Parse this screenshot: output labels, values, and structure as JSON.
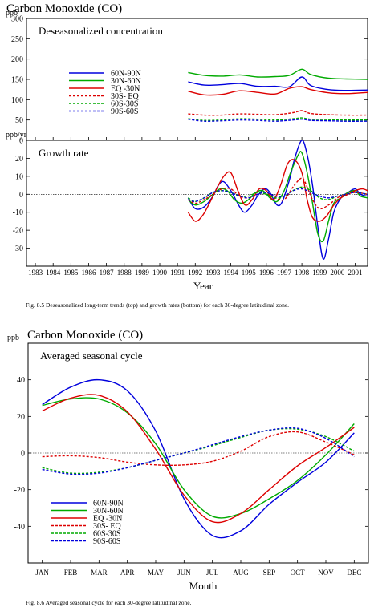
{
  "figure1": {
    "title": "Carbon Monoxide (CO)",
    "caption": "Fig. 8.5  Deseasonalized long-term trends (top) and growth rates (bottom) for each 30-degree latitudinal zone.",
    "xlabel": "Year",
    "xticks": [
      "1983",
      "1984",
      "1985",
      "1986",
      "1987",
      "1988",
      "1989",
      "1990",
      "1991",
      "1992",
      "1993",
      "1994",
      "1995",
      "1996",
      "1997",
      "1998",
      "1999",
      "2000",
      "2001"
    ]
  },
  "figure2": {
    "title": "Carbon Monoxide (CO)",
    "caption": "Fig. 8.6  Averaged seasonal cycle for each 30-degree latitudinal zone."
  },
  "colors": {
    "blue": "#0000dd",
    "green": "#00aa00",
    "red": "#dd0000"
  },
  "chart_data": [
    {
      "type": "line",
      "title": "Deseasonalized concentration",
      "ylabel": "ppb",
      "xlim": [
        1982.5,
        2001.7
      ],
      "ylim": [
        0,
        300
      ],
      "yticks": [
        0,
        50,
        100,
        150,
        200,
        250,
        300
      ],
      "legend": "top-left",
      "series": [
        {
          "name": "60N-90N",
          "color": "#0000dd",
          "dash": false,
          "x": [
            1991.6,
            1992.5,
            1993.5,
            1994.5,
            1995.5,
            1996.5,
            1997.3,
            1998.0,
            1998.5,
            1999.5,
            2000.5,
            2001.7
          ],
          "y": [
            144,
            136,
            137,
            140,
            133,
            133,
            132,
            156,
            135,
            125,
            123,
            124
          ]
        },
        {
          "name": "30N-60N",
          "color": "#00aa00",
          "dash": false,
          "x": [
            1991.6,
            1992.5,
            1993.5,
            1994.5,
            1995.5,
            1996.5,
            1997.3,
            1998.0,
            1998.5,
            1999.5,
            2000.5,
            2001.7
          ],
          "y": [
            167,
            160,
            158,
            161,
            156,
            157,
            160,
            175,
            162,
            153,
            151,
            150
          ]
        },
        {
          "name": "EQ -30N",
          "color": "#dd0000",
          "dash": false,
          "x": [
            1991.6,
            1992.5,
            1993.5,
            1994.5,
            1995.5,
            1996.5,
            1997.3,
            1998.0,
            1998.5,
            1999.5,
            2000.5,
            2001.7
          ],
          "y": [
            121,
            112,
            113,
            122,
            118,
            114,
            128,
            132,
            125,
            117,
            115,
            118
          ]
        },
        {
          "name": "30S- EQ",
          "color": "#dd0000",
          "dash": true,
          "x": [
            1991.6,
            1992.5,
            1993.5,
            1994.5,
            1995.5,
            1996.5,
            1997.5,
            1998.0,
            1998.5,
            1999.5,
            2000.5,
            2001.7
          ],
          "y": [
            65,
            62,
            62,
            65,
            64,
            63,
            68,
            73,
            66,
            63,
            62,
            62
          ]
        },
        {
          "name": "60S-30S",
          "color": "#00aa00",
          "dash": true,
          "x": [
            1991.6,
            1992.5,
            1993.5,
            1994.5,
            1995.5,
            1996.5,
            1997.5,
            1998.0,
            1998.5,
            1999.5,
            2000.5,
            2001.7
          ],
          "y": [
            53,
            49,
            50,
            53,
            52,
            50,
            53,
            55,
            52,
            51,
            50,
            50
          ]
        },
        {
          "name": "90S-60S",
          "color": "#0000dd",
          "dash": true,
          "x": [
            1991.6,
            1992.5,
            1993.5,
            1994.5,
            1995.5,
            1996.5,
            1997.5,
            1998.0,
            1998.5,
            1999.5,
            2000.5,
            2001.7
          ],
          "y": [
            52,
            47,
            48,
            50,
            49,
            47,
            50,
            52,
            49,
            48,
            47,
            47
          ]
        }
      ]
    },
    {
      "type": "line",
      "title": "Growth rate",
      "ylabel": "ppb/yr",
      "xlim": [
        1982.5,
        2001.7
      ],
      "ylim": [
        -40,
        30
      ],
      "yticks": [
        -30,
        -20,
        -10,
        0,
        10,
        20
      ],
      "zero_line": true,
      "series": [
        {
          "name": "60N-90N",
          "color": "#0000dd",
          "dash": false,
          "x": [
            1991.6,
            1992.0,
            1992.5,
            1993.0,
            1993.3,
            1993.6,
            1994.0,
            1994.5,
            1994.8,
            1995.2,
            1995.5,
            1995.9,
            1996.2,
            1996.6,
            1996.9,
            1997.3,
            1997.6,
            1998.0,
            1998.3,
            1998.6,
            1998.9,
            1999.2,
            1999.5,
            1999.8,
            2000.2,
            2000.6,
            2001.0,
            2001.3,
            2001.7
          ],
          "y": [
            -2,
            -8,
            -7,
            -1,
            5,
            7,
            2,
            -7,
            -10,
            -6,
            -1,
            3,
            1,
            -6,
            -4,
            8,
            20,
            30,
            22,
            5,
            -18,
            -36,
            -25,
            -10,
            -2,
            1,
            3,
            0,
            -1
          ]
        },
        {
          "name": "30N-60N",
          "color": "#00aa00",
          "dash": false,
          "x": [
            1991.6,
            1992.0,
            1992.5,
            1993.0,
            1993.4,
            1993.8,
            1994.2,
            1994.6,
            1995.0,
            1995.4,
            1995.8,
            1996.2,
            1996.6,
            1997.0,
            1997.4,
            1997.8,
            1998.0,
            1998.3,
            1998.6,
            1998.9,
            1999.2,
            1999.5,
            1999.8,
            2000.2,
            2000.6,
            2001.0,
            2001.3,
            2001.7
          ],
          "y": [
            -3,
            -6,
            -4,
            0,
            3,
            2,
            -3,
            -5,
            -3,
            1,
            2,
            -2,
            -4,
            2,
            13,
            22,
            23,
            12,
            -5,
            -22,
            -26,
            -15,
            -5,
            -2,
            1,
            2,
            -1,
            -2
          ]
        },
        {
          "name": "EQ -30N",
          "color": "#dd0000",
          "dash": false,
          "x": [
            1991.6,
            1992.0,
            1992.4,
            1992.8,
            1993.2,
            1993.6,
            1994.0,
            1994.4,
            1994.8,
            1995.2,
            1995.6,
            1996.0,
            1996.4,
            1996.8,
            1997.2,
            1997.6,
            1998.0,
            1998.3,
            1998.6,
            1999.0,
            1999.4,
            1999.8,
            2000.2,
            2000.6,
            2001.0,
            2001.4,
            2001.7
          ],
          "y": [
            -10,
            -15,
            -12,
            -5,
            3,
            10,
            12,
            2,
            -6,
            -3,
            3,
            2,
            -3,
            5,
            17,
            19,
            12,
            -3,
            -13,
            -15,
            -12,
            -6,
            -2,
            0,
            2,
            3,
            2
          ]
        },
        {
          "name": "30S- EQ",
          "color": "#dd0000",
          "dash": true,
          "x": [
            1991.6,
            1992.0,
            1992.5,
            1993.0,
            1993.5,
            1994.0,
            1994.5,
            1995.0,
            1995.5,
            1996.0,
            1996.5,
            1997.0,
            1997.5,
            1998.0,
            1998.3,
            1998.6,
            1999.0,
            1999.5,
            2000.0,
            2000.5,
            2001.0,
            2001.7
          ],
          "y": [
            -3,
            -5,
            -3,
            0,
            3,
            3,
            -1,
            -2,
            0,
            1,
            -2,
            -3,
            4,
            9,
            4,
            -3,
            -8,
            -6,
            -2,
            0,
            1,
            0
          ]
        },
        {
          "name": "60S-30S",
          "color": "#00aa00",
          "dash": true,
          "x": [
            1991.6,
            1992.0,
            1992.5,
            1993.0,
            1993.5,
            1994.0,
            1994.5,
            1995.0,
            1995.5,
            1996.0,
            1996.5,
            1997.0,
            1997.5,
            1998.0,
            1998.5,
            1999.0,
            1999.5,
            2000.0,
            2000.5,
            2001.0,
            2001.7
          ],
          "y": [
            -2,
            -4,
            -2,
            1,
            2,
            1,
            -1,
            -1,
            1,
            0,
            -2,
            -1,
            2,
            4,
            2,
            -2,
            -3,
            -1,
            0,
            1,
            0
          ]
        },
        {
          "name": "90S-60S",
          "color": "#0000dd",
          "dash": true,
          "x": [
            1991.6,
            1992.0,
            1992.5,
            1993.0,
            1993.5,
            1994.0,
            1994.5,
            1995.0,
            1995.5,
            1996.0,
            1996.5,
            1997.0,
            1997.5,
            1998.0,
            1998.5,
            1999.0,
            1999.5,
            2000.0,
            2000.5,
            2001.0,
            2001.7
          ],
          "y": [
            -3,
            -4,
            -2,
            1,
            2,
            1,
            -1,
            -2,
            0,
            1,
            -1,
            -1,
            2,
            3,
            1,
            -1,
            -2,
            -1,
            0,
            1,
            0
          ]
        }
      ]
    },
    {
      "type": "line",
      "title": "Averaged seasonal cycle",
      "ylabel": "ppb",
      "xlabel": "Month",
      "categories": [
        "JAN",
        "FEB",
        "MAR",
        "APR",
        "MAY",
        "JUN",
        "JUL",
        "AUG",
        "SEP",
        "OCT",
        "NOV",
        "DEC"
      ],
      "ylim": [
        -60,
        60
      ],
      "yticks": [
        -40,
        -20,
        0,
        20,
        40
      ],
      "zero_line": true,
      "legend": "bottom-left",
      "series": [
        {
          "name": "60N-90N",
          "color": "#0000dd",
          "dash": false,
          "values": [
            26.5,
            36,
            40,
            34,
            12,
            -25,
            -45,
            -42.5,
            -28,
            -16,
            -5,
            11
          ]
        },
        {
          "name": "30N-60N",
          "color": "#00aa00",
          "dash": false,
          "values": [
            26,
            29.5,
            29.5,
            22,
            5,
            -20,
            -34.5,
            -33,
            -25,
            -15,
            -1,
            16
          ]
        },
        {
          "name": "EQ -30N",
          "color": "#dd0000",
          "dash": false,
          "values": [
            23,
            30,
            31.5,
            22.5,
            2,
            -23,
            -37.5,
            -33,
            -20,
            -7,
            3,
            14
          ]
        },
        {
          "name": "30S- EQ",
          "color": "#dd0000",
          "dash": true,
          "values": [
            -2,
            -1.5,
            -2.5,
            -5,
            -6.5,
            -6.5,
            -4.5,
            1,
            9,
            11.5,
            6,
            -1
          ]
        },
        {
          "name": "60S-30S",
          "color": "#00aa00",
          "dash": true,
          "values": [
            -8,
            -11,
            -10.5,
            -8,
            -4,
            0,
            4,
            8.5,
            12.5,
            13,
            9,
            1
          ]
        },
        {
          "name": "90S-60S",
          "color": "#0000dd",
          "dash": true,
          "values": [
            -9,
            -11.5,
            -11,
            -8,
            -4,
            0,
            4.5,
            9,
            12.5,
            13.5,
            8,
            -2
          ]
        }
      ]
    }
  ]
}
